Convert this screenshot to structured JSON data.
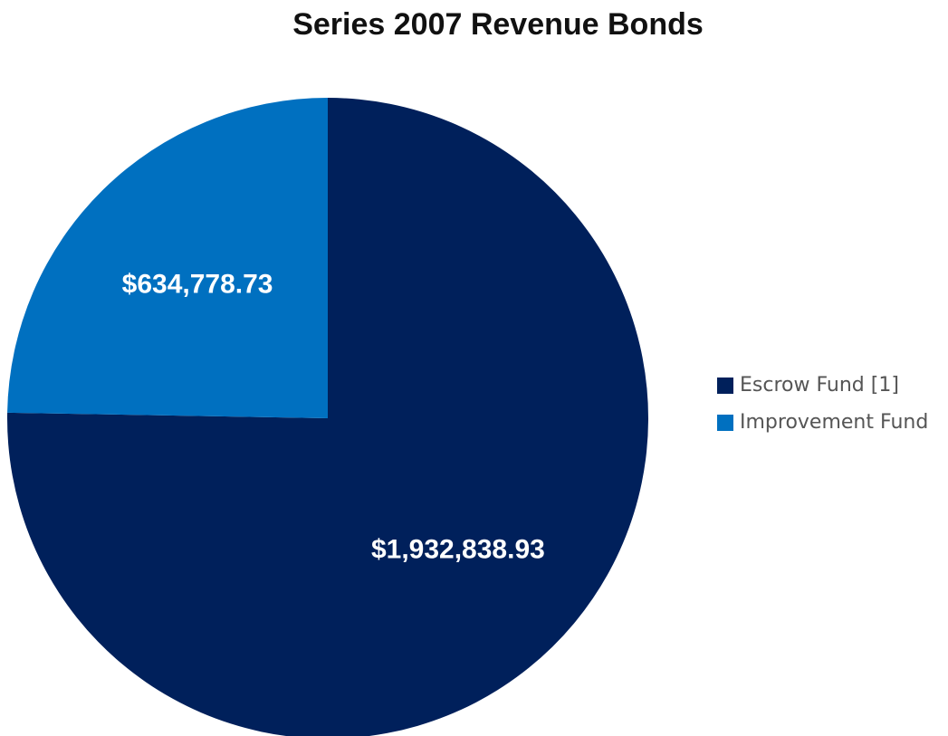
{
  "chart_data": {
    "type": "pie",
    "title": "Series 2007 Revenue Bonds",
    "categories": [
      "Escrow Fund [1]",
      "Improvement Fund"
    ],
    "values": [
      1932838.93,
      634778.73
    ],
    "value_labels": [
      "$1,932,838.93",
      "$634,778.73"
    ],
    "colors": [
      "#00205b",
      "#0070c0"
    ],
    "label_color": "#ffffff",
    "legend_position": "right"
  }
}
